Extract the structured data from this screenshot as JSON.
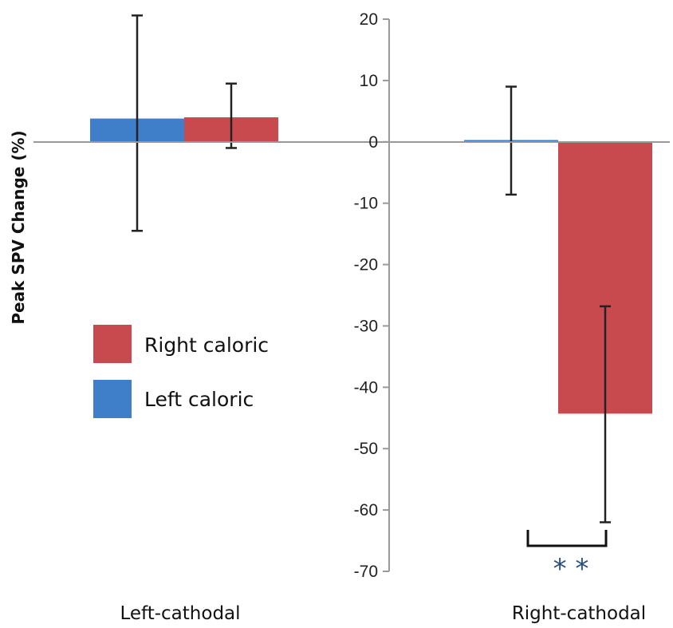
{
  "chart_data": {
    "type": "bar",
    "ylabel": "Peak SPV Change  (%)",
    "ylim": [
      -70,
      20
    ],
    "yticks": [
      20,
      10,
      0,
      -10,
      -20,
      -30,
      -40,
      -50,
      -60,
      -70
    ],
    "categories": [
      "Left-cathodal",
      "Right-cathodal"
    ],
    "series": [
      {
        "name": "Left caloric",
        "color": "#3f7ec9",
        "values": [
          3.8,
          0.3
        ],
        "error": [
          [
            -14.5,
            20.6
          ],
          [
            -8.6,
            9.0
          ]
        ]
      },
      {
        "name": "Right caloric",
        "color": "#c94a4e",
        "values": [
          4.0,
          -44.3
        ],
        "error": [
          [
            -1.0,
            9.5
          ],
          [
            -62.0,
            -26.8
          ]
        ]
      }
    ],
    "legend": {
      "placement": "left-middle",
      "entries": [
        {
          "label": "Right caloric",
          "color": "#c94a4e"
        },
        {
          "label": "Left caloric",
          "color": "#3f7ec9"
        }
      ]
    },
    "annotations": [
      {
        "text": "* *",
        "category": "Right-cathodal"
      }
    ],
    "grid": false
  }
}
